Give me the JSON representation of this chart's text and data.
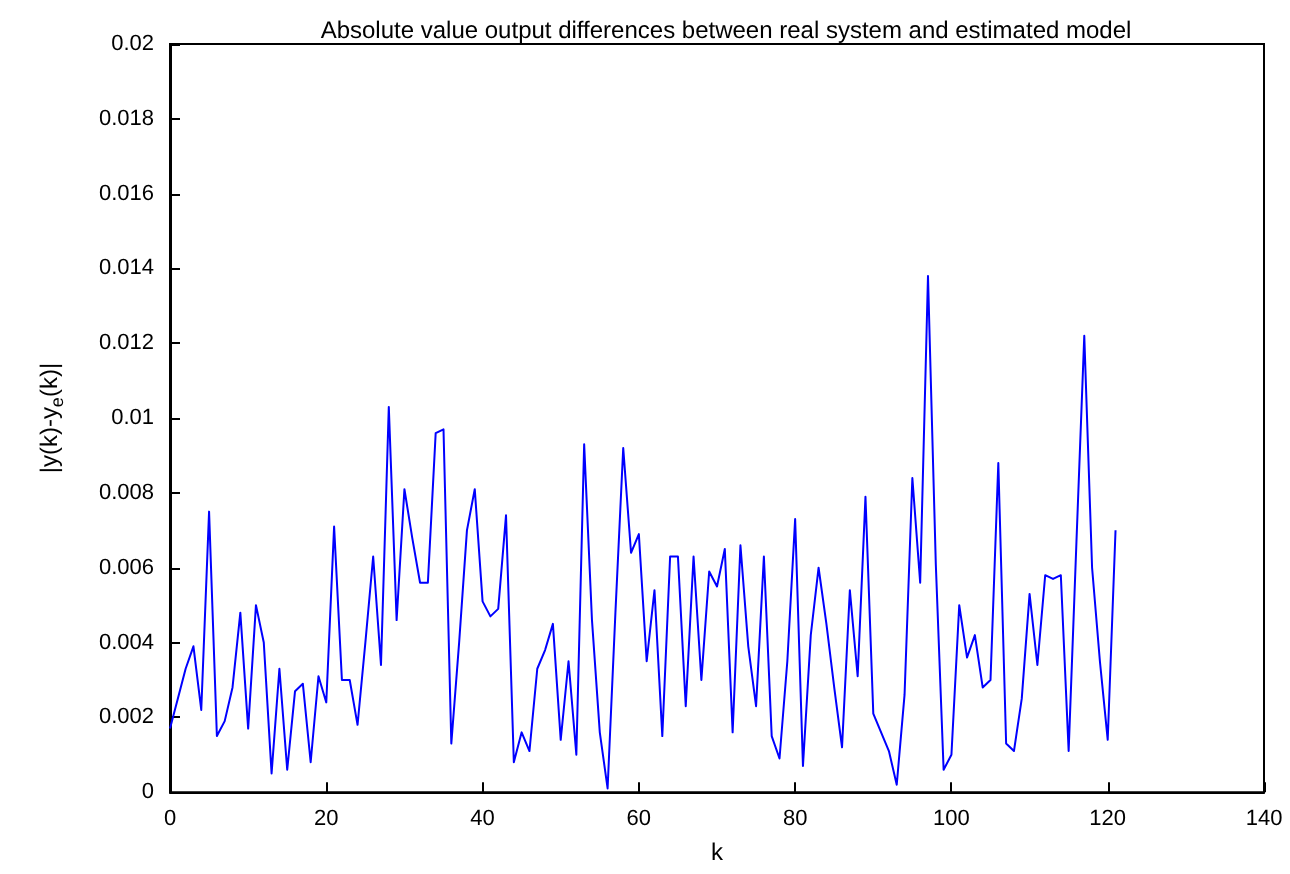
{
  "chart_data": {
    "type": "line",
    "title": "Absolute value output differences between real system and estimated model",
    "xlabel": "k",
    "ylabel": "|y(k)-y$_{e}$(k)|",
    "x": [
      0,
      1,
      2,
      3,
      4,
      5,
      6,
      7,
      8,
      9,
      10,
      11,
      12,
      13,
      14,
      15,
      16,
      17,
      18,
      19,
      20,
      21,
      22,
      23,
      24,
      25,
      26,
      27,
      28,
      29,
      30,
      31,
      32,
      33,
      34,
      35,
      36,
      37,
      38,
      39,
      40,
      41,
      42,
      43,
      44,
      45,
      46,
      47,
      48,
      49,
      50,
      51,
      52,
      53,
      54,
      55,
      56,
      57,
      58,
      59,
      60,
      61,
      62,
      63,
      64,
      65,
      66,
      67,
      68,
      69,
      70,
      71,
      72,
      73,
      74,
      75,
      76,
      77,
      78,
      79,
      80,
      81,
      82,
      83,
      84,
      85,
      86,
      87,
      88,
      89,
      90,
      91,
      92,
      93,
      94,
      95,
      96,
      97,
      98,
      99,
      100,
      101,
      102,
      103,
      104,
      105,
      106,
      107,
      108,
      109,
      110,
      111,
      112,
      113,
      114,
      115,
      116,
      117,
      118,
      119,
      120,
      121
    ],
    "series": [
      {
        "color": "#0000ff",
        "values": [
          0.0017,
          0.0025,
          0.0033,
          0.0039,
          0.0022,
          0.0075,
          0.0015,
          0.0019,
          0.0028,
          0.0048,
          0.0017,
          0.005,
          0.004,
          0.0005,
          0.0033,
          0.0006,
          0.0027,
          0.0029,
          0.0008,
          0.0031,
          0.0024,
          0.0071,
          0.003,
          0.003,
          0.0018,
          0.004,
          0.0063,
          0.0034,
          0.0103,
          0.0046,
          0.0081,
          0.0068,
          0.0056,
          0.0056,
          0.0096,
          0.0097,
          0.0013,
          0.004,
          0.007,
          0.0081,
          0.0051,
          0.0047,
          0.0049,
          0.0074,
          0.0008,
          0.0016,
          0.0011,
          0.0033,
          0.0038,
          0.0045,
          0.0014,
          0.0035,
          0.001,
          0.0093,
          0.0046,
          0.0016,
          0.0001,
          0.0048,
          0.0092,
          0.0064,
          0.0069,
          0.0035,
          0.0054,
          0.0015,
          0.0063,
          0.0063,
          0.0023,
          0.0063,
          0.003,
          0.0059,
          0.0055,
          0.0065,
          0.0016,
          0.0066,
          0.0039,
          0.0023,
          0.0063,
          0.0015,
          0.0009,
          0.0035,
          0.0073,
          0.0007,
          0.0042,
          0.006,
          0.0045,
          0.0028,
          0.0012,
          0.0054,
          0.0031,
          0.0079,
          0.0021,
          0.0016,
          0.0011,
          0.0002,
          0.0026,
          0.0084,
          0.0056,
          0.0138,
          0.0061,
          0.0006,
          0.001,
          0.005,
          0.0036,
          0.0042,
          0.0028,
          0.003,
          0.0088,
          0.0013,
          0.0011,
          0.0025,
          0.0053,
          0.0034,
          0.0058,
          0.0057,
          0.0058,
          0.0011,
          0.0067,
          0.0122,
          0.006,
          0.0035,
          0.0014,
          0.007
        ]
      }
    ],
    "xlim": [
      0,
      140
    ],
    "xticks": [
      0,
      20,
      40,
      60,
      80,
      100,
      120,
      140
    ],
    "ylim": [
      0,
      0.02
    ],
    "yticks": [
      0,
      0.002,
      0.004,
      0.006,
      0.008,
      0.01,
      0.012,
      0.014,
      0.016,
      0.018,
      0.02
    ],
    "grid": false,
    "marker": "none",
    "line_style": "solid"
  }
}
